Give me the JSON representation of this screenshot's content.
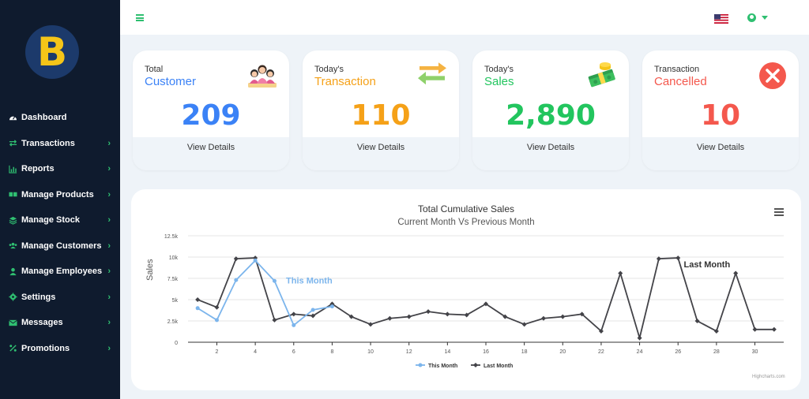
{
  "logo": {
    "letter": "B",
    "color": "#f5c518"
  },
  "sidebar": {
    "items": [
      {
        "label": "Dashboard",
        "icon": "dashboard-icon",
        "has_chevron": false
      },
      {
        "label": "Transactions",
        "icon": "exchange-icon",
        "has_chevron": true
      },
      {
        "label": "Reports",
        "icon": "bar-chart-icon",
        "has_chevron": true
      },
      {
        "label": "Manage Products",
        "icon": "boxes-icon",
        "has_chevron": true
      },
      {
        "label": "Manage Stock",
        "icon": "layers-icon",
        "has_chevron": true
      },
      {
        "label": "Manage Customers",
        "icon": "users-icon",
        "has_chevron": true
      },
      {
        "label": "Manage Employees",
        "icon": "user-icon",
        "has_chevron": true
      },
      {
        "label": "Settings",
        "icon": "gear-icon",
        "has_chevron": true
      },
      {
        "label": "Messages",
        "icon": "envelope-icon",
        "has_chevron": true
      },
      {
        "label": "Promotions",
        "icon": "percent-icon",
        "has_chevron": true
      }
    ],
    "chevron": "›"
  },
  "topbar": {
    "menu_icon": "hamburger-icon",
    "flag_icon": "us-flag-icon",
    "user_icon": "user-circle-icon"
  },
  "cards": [
    {
      "sub": "Total",
      "head": "Customer",
      "value": "209",
      "details": "View Details",
      "color": "#3b82f6",
      "icon": "customers-icon"
    },
    {
      "sub": "Today's",
      "head": "Transaction",
      "value": "110",
      "details": "View Details",
      "color": "#f5a118",
      "icon": "exchange-arrows-icon"
    },
    {
      "sub": "Today's",
      "head": "Sales",
      "value": "2,890",
      "details": "View Details",
      "color": "#22c55e",
      "icon": "money-icon"
    },
    {
      "sub": "Transaction",
      "head": "Cancelled",
      "value": "10",
      "details": "View Details",
      "color": "#f4584d",
      "icon": "cancel-icon"
    }
  ],
  "chart": {
    "menu_icon": "chart-menu-icon",
    "credit": "Highcharts.com"
  },
  "chart_data": {
    "type": "line",
    "title": "Total Cumulative Sales",
    "subtitle": "Current Month Vs Previous Month",
    "xlabel": "",
    "ylabel": "Sales",
    "x_ticks": [
      2,
      4,
      6,
      8,
      10,
      12,
      14,
      16,
      18,
      20,
      22,
      24,
      26,
      28,
      30
    ],
    "y_ticks": [
      "0",
      "2.5k",
      "5k",
      "7.5k",
      "10k",
      "12.5k"
    ],
    "y_tick_values": [
      0,
      2500,
      5000,
      7500,
      10000,
      12500
    ],
    "xlim": [
      0.5,
      31.5
    ],
    "ylim": [
      0,
      12500
    ],
    "grid": true,
    "legend": "bottom-center",
    "series": [
      {
        "name": "This Month",
        "color": "#7cb5ec",
        "label": "This Month",
        "x": [
          1,
          2,
          3,
          4,
          5,
          6,
          7,
          8
        ],
        "values": [
          4000,
          2600,
          7300,
          9600,
          7200,
          2000,
          3800,
          4200
        ]
      },
      {
        "name": "Last Month",
        "color": "#434348",
        "label": "Last Month",
        "x": [
          1,
          2,
          3,
          4,
          5,
          6,
          7,
          8,
          9,
          10,
          11,
          12,
          13,
          14,
          15,
          16,
          17,
          18,
          19,
          20,
          21,
          22,
          23,
          24,
          25,
          26,
          27,
          28,
          29,
          30,
          31
        ],
        "values": [
          5000,
          4100,
          9800,
          9900,
          2600,
          3300,
          3100,
          4500,
          3000,
          2100,
          2800,
          3000,
          3600,
          3300,
          3200,
          4500,
          3000,
          2100,
          2800,
          3000,
          3300,
          1300,
          8100,
          500,
          9800,
          9900,
          2500,
          1300,
          8100,
          1500,
          1500
        ]
      }
    ]
  }
}
